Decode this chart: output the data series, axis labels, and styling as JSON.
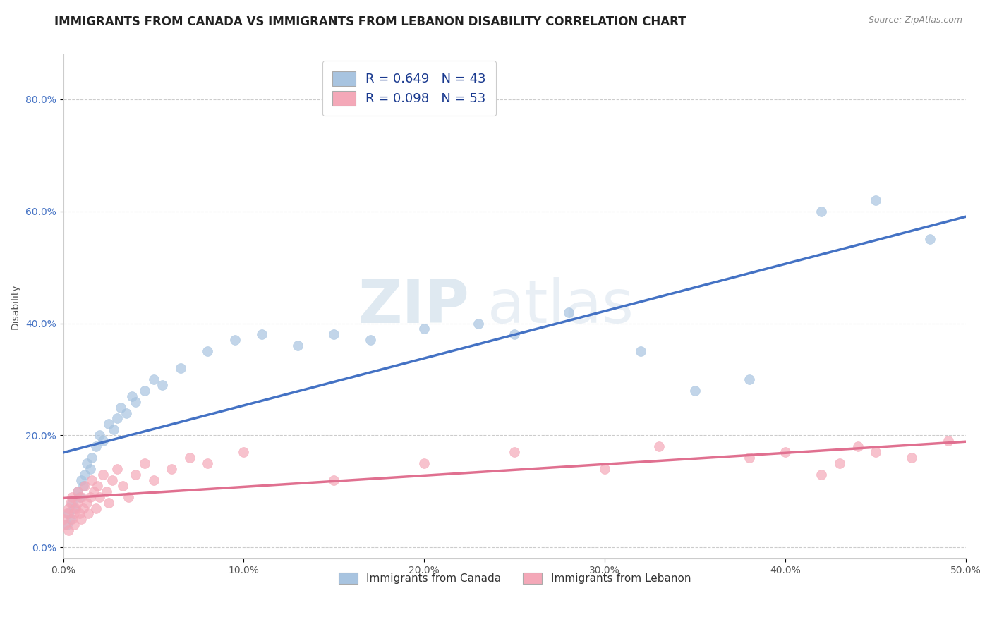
{
  "title": "IMMIGRANTS FROM CANADA VS IMMIGRANTS FROM LEBANON DISABILITY CORRELATION CHART",
  "source": "Source: ZipAtlas.com",
  "ylabel": "Disability",
  "xlim": [
    0.0,
    0.5
  ],
  "ylim": [
    -0.02,
    0.88
  ],
  "xticks": [
    0.0,
    0.1,
    0.2,
    0.3,
    0.4,
    0.5
  ],
  "xticklabels": [
    "0.0%",
    "10.0%",
    "20.0%",
    "30.0%",
    "40.0%",
    "50.0%"
  ],
  "yticks": [
    0.0,
    0.2,
    0.4,
    0.6,
    0.8
  ],
  "yticklabels": [
    "0.0%",
    "20.0%",
    "40.0%",
    "60.0%",
    "80.0%"
  ],
  "canada_color": "#a8c4e0",
  "lebanon_color": "#f4a8b8",
  "canada_line_color": "#4472c4",
  "lebanon_line_color": "#e07090",
  "canada_R": 0.649,
  "canada_N": 43,
  "lebanon_R": 0.098,
  "lebanon_N": 53,
  "legend_label_canada": "Immigrants from Canada",
  "legend_label_lebanon": "Immigrants from Lebanon",
  "canada_scatter_x": [
    0.002,
    0.003,
    0.004,
    0.005,
    0.006,
    0.008,
    0.009,
    0.01,
    0.011,
    0.012,
    0.013,
    0.015,
    0.016,
    0.018,
    0.02,
    0.022,
    0.025,
    0.028,
    0.03,
    0.032,
    0.035,
    0.038,
    0.04,
    0.045,
    0.05,
    0.055,
    0.065,
    0.08,
    0.095,
    0.11,
    0.13,
    0.15,
    0.17,
    0.2,
    0.23,
    0.25,
    0.28,
    0.32,
    0.35,
    0.38,
    0.42,
    0.45,
    0.48
  ],
  "canada_scatter_y": [
    0.04,
    0.06,
    0.05,
    0.08,
    0.07,
    0.1,
    0.09,
    0.12,
    0.11,
    0.13,
    0.15,
    0.14,
    0.16,
    0.18,
    0.2,
    0.19,
    0.22,
    0.21,
    0.23,
    0.25,
    0.24,
    0.27,
    0.26,
    0.28,
    0.3,
    0.29,
    0.32,
    0.35,
    0.37,
    0.38,
    0.36,
    0.38,
    0.37,
    0.39,
    0.4,
    0.38,
    0.42,
    0.35,
    0.28,
    0.3,
    0.6,
    0.62,
    0.55
  ],
  "lebanon_scatter_x": [
    0.0,
    0.001,
    0.002,
    0.003,
    0.003,
    0.004,
    0.005,
    0.005,
    0.006,
    0.006,
    0.007,
    0.008,
    0.008,
    0.009,
    0.01,
    0.01,
    0.011,
    0.012,
    0.013,
    0.014,
    0.015,
    0.016,
    0.017,
    0.018,
    0.019,
    0.02,
    0.022,
    0.024,
    0.025,
    0.027,
    0.03,
    0.033,
    0.036,
    0.04,
    0.045,
    0.05,
    0.06,
    0.07,
    0.08,
    0.1,
    0.15,
    0.2,
    0.25,
    0.3,
    0.33,
    0.38,
    0.4,
    0.42,
    0.43,
    0.44,
    0.45,
    0.47,
    0.49
  ],
  "lebanon_scatter_y": [
    0.05,
    0.04,
    0.06,
    0.07,
    0.03,
    0.08,
    0.05,
    0.09,
    0.06,
    0.04,
    0.07,
    0.1,
    0.08,
    0.06,
    0.09,
    0.05,
    0.07,
    0.11,
    0.08,
    0.06,
    0.09,
    0.12,
    0.1,
    0.07,
    0.11,
    0.09,
    0.13,
    0.1,
    0.08,
    0.12,
    0.14,
    0.11,
    0.09,
    0.13,
    0.15,
    0.12,
    0.14,
    0.16,
    0.15,
    0.17,
    0.12,
    0.15,
    0.17,
    0.14,
    0.18,
    0.16,
    0.17,
    0.13,
    0.15,
    0.18,
    0.17,
    0.16,
    0.19
  ],
  "watermark_text_1": "ZIP",
  "watermark_text_2": "atlas",
  "title_fontsize": 12,
  "axis_label_fontsize": 10,
  "tick_fontsize": 10,
  "legend_fontsize": 13
}
